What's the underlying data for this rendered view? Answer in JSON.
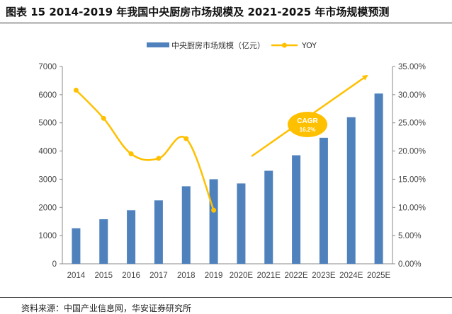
{
  "title": "图表 15 2014-2019 年我国中央厨房市场规模及 2021-2025 年市场规模预测",
  "source": "资料来源：中国产业信息网，华安证券研究所",
  "colors": {
    "bar": "#4F81BD",
    "line": "#FFC000",
    "annotation": "#FFC000"
  },
  "chart_data": {
    "type": "bar+line",
    "categories": [
      "2014",
      "2015",
      "2016",
      "2017",
      "2018",
      "2019",
      "2020E",
      "2021E",
      "2022E",
      "2023E",
      "2024E",
      "2025E"
    ],
    "series": [
      {
        "name": "中央厨房市场规模（亿元）",
        "type": "bar",
        "axis": "left",
        "values": [
          1260,
          1580,
          1900,
          2250,
          2750,
          3000,
          2850,
          3300,
          3850,
          4470,
          5200,
          6040
        ]
      },
      {
        "name": "YOY",
        "type": "line",
        "axis": "right",
        "values": [
          30.8,
          25.8,
          19.5,
          18.7,
          22.2,
          9.5,
          null,
          null,
          null,
          null,
          null,
          null
        ]
      }
    ],
    "left_axis": {
      "min": 0,
      "max": 7000,
      "step": 1000,
      "ticks": [
        "0",
        "1000",
        "2000",
        "3000",
        "4000",
        "5000",
        "6000",
        "7000"
      ]
    },
    "right_axis": {
      "min": 0,
      "max": 35,
      "step": 5,
      "ticks": [
        "0.00%",
        "5.00%",
        "10.00%",
        "15.00%",
        "20.00%",
        "25.00%",
        "30.00%",
        "35.00%"
      ]
    },
    "annotation": {
      "label": "CAGR",
      "value": "16.2%"
    }
  }
}
